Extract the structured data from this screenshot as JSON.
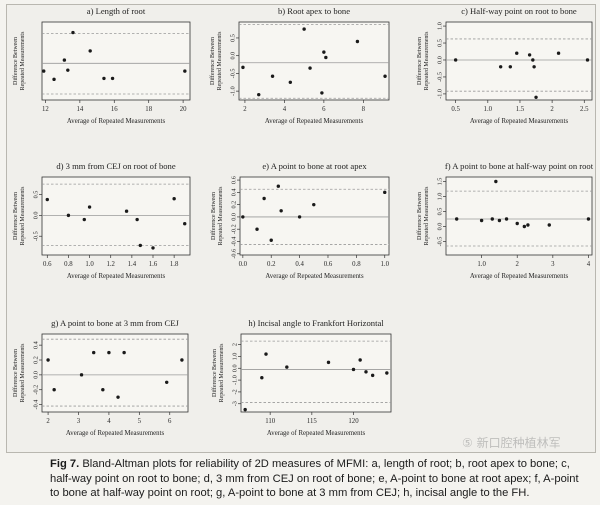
{
  "figure": {
    "caption_label": "Fig 7.",
    "caption_text": "Bland-Altman plots for reliability of 2D measures of MFMI: a, length of root; b, root apex to bone; c, half-way point on root to bone; d, 3 mm from CEJ on root of bone; e, A-point to bone at root apex; f, A-point to bone at half-way point on root; g, A-point to bone at 3 mm from CEJ; h, incisal angle to the FH.",
    "watermark": "⑤ 新口腔种植林军"
  },
  "colors": {
    "mean_line": "#9a9a9a",
    "limit_line": "#9a9a9a",
    "point": "#1a1a1a",
    "axis": "#333333"
  },
  "chart_data": [
    {
      "type": "scatter",
      "title": "a) Length of root",
      "xlabel": "Average of Repeated Measurements",
      "ylabel": "Difference Between Repeated Measurements",
      "xlim": [
        11.8,
        20.4
      ],
      "ylim": [
        -0.85,
        0.85
      ],
      "xticks": [
        12,
        14,
        16,
        18,
        20
      ],
      "yticks": [],
      "mean": -0.05,
      "limits": [
        -0.72,
        0.6
      ],
      "x": [
        11.9,
        12.5,
        13.1,
        13.3,
        13.6,
        14.6,
        15.4,
        15.9,
        20.1
      ],
      "y": [
        -0.22,
        -0.4,
        0.02,
        -0.2,
        0.62,
        0.22,
        -0.38,
        -0.38,
        -0.22
      ]
    },
    {
      "type": "scatter",
      "title": "b) Root apex to bone",
      "xlabel": "Average of Repeated Measurements",
      "ylabel": "Difference Between Repeated Measurements",
      "xlim": [
        1.7,
        9.3
      ],
      "ylim": [
        -1.25,
        0.95
      ],
      "xticks": [
        2,
        4,
        6,
        8
      ],
      "yticks": [
        0.5,
        0.0,
        -0.5,
        -1.0
      ],
      "mean": -0.2,
      "limits": [
        -1.2,
        0.88
      ],
      "x": [
        1.9,
        2.7,
        3.4,
        4.3,
        5.0,
        5.3,
        5.9,
        6.0,
        6.1,
        7.7,
        9.1
      ],
      "y": [
        -0.33,
        -1.1,
        -0.58,
        -0.75,
        0.75,
        -0.35,
        -1.05,
        0.1,
        -0.05,
        0.4,
        -0.58
      ]
    },
    {
      "type": "scatter",
      "title": "c) Half-way point on root to bone",
      "xlabel": "Average of Repeated Measurements",
      "ylabel": "Difference Between Repeated Measurements",
      "xlim": [
        0.35,
        2.62
      ],
      "ylim": [
        -1.18,
        1.12
      ],
      "xticks": [
        0.5,
        1.0,
        1.5,
        2.0,
        2.5
      ],
      "yticks": [
        1.0,
        0.5,
        0.0,
        -0.5,
        -1.0
      ],
      "mean": 0.0,
      "limits": [
        -0.92,
        0.62
      ],
      "x": [
        0.5,
        1.2,
        1.35,
        1.45,
        1.65,
        1.7,
        1.72,
        1.75,
        2.1,
        2.55
      ],
      "y": [
        0.0,
        -0.2,
        -0.2,
        0.2,
        0.15,
        0.0,
        -0.2,
        -1.1,
        0.2,
        0.0
      ]
    },
    {
      "type": "scatter",
      "title": "d) 3 mm from CEJ on root of bone",
      "xlabel": "Average of Repeated Measurements",
      "ylabel": "Difference Between Repeated Measurements",
      "xlim": [
        0.55,
        1.95
      ],
      "ylim": [
        -0.95,
        0.92
      ],
      "xticks": [
        0.6,
        0.8,
        1.0,
        1.2,
        1.4,
        1.6,
        1.8
      ],
      "yticks": [
        0.5,
        0.0,
        -0.5
      ],
      "mean": 0.0,
      "limits": [
        -0.72,
        0.75
      ],
      "x": [
        0.6,
        0.8,
        0.95,
        1.0,
        1.35,
        1.45,
        1.48,
        1.6,
        1.8,
        1.9
      ],
      "y": [
        0.38,
        0.0,
        -0.1,
        0.2,
        0.1,
        -0.1,
        -0.72,
        -0.78,
        0.4,
        -0.2
      ]
    },
    {
      "type": "scatter",
      "title": "e) A point to bone at root apex",
      "xlabel": "Average of Repeated Measurements",
      "ylabel": "Difference Between Repeated Measurements",
      "xlim": [
        -0.02,
        1.03
      ],
      "ylim": [
        -0.62,
        0.65
      ],
      "xticks": [
        0.0,
        0.2,
        0.4,
        0.6,
        0.8,
        1.0
      ],
      "yticks": [
        0.6,
        0.4,
        0.2,
        0.0,
        -0.2,
        -0.4,
        -0.6
      ],
      "mean": 0.0,
      "limits": [
        -0.45,
        0.45
      ],
      "x": [
        0.0,
        0.1,
        0.15,
        0.2,
        0.25,
        0.27,
        0.4,
        0.5,
        1.0
      ],
      "y": [
        0.0,
        -0.2,
        0.3,
        -0.38,
        0.5,
        0.1,
        0.0,
        0.2,
        0.4
      ]
    },
    {
      "type": "scatter",
      "title": "f) A point to bone at half-way point on root",
      "xlabel": "Average of Repeated Measurements",
      "ylabel": "Difference Between Repeated Measurements",
      "xlim": [
        0.0,
        4.1
      ],
      "ylim": [
        -0.95,
        1.65
      ],
      "xticks": [
        1,
        2,
        3,
        4
      ],
      "yticks": [
        1.5,
        1.0,
        0.5,
        0.0,
        -0.5
      ],
      "mean": 0.25,
      "limits": [
        -0.65,
        1.18
      ],
      "x": [
        0.3,
        1.0,
        1.3,
        1.4,
        1.5,
        1.7,
        2.0,
        2.2,
        2.3,
        2.9,
        4.0
      ],
      "y": [
        0.25,
        0.2,
        0.25,
        1.5,
        0.2,
        0.25,
        0.1,
        0.0,
        0.05,
        0.05,
        0.25
      ]
    },
    {
      "type": "scatter",
      "title": "g) A point to bone at 3 mm from CEJ",
      "xlabel": "Average of Repeated Measurements",
      "ylabel": "Difference Between Repeated Measurements",
      "xlim": [
        1.8,
        6.6
      ],
      "ylim": [
        -0.5,
        0.55
      ],
      "xticks": [
        2,
        3,
        4,
        5,
        6
      ],
      "yticks": [
        0.4,
        0.2,
        0.0,
        -0.2,
        -0.4
      ],
      "mean": 0.0,
      "limits": [
        -0.42,
        0.48
      ],
      "x": [
        2.0,
        2.2,
        3.1,
        3.5,
        3.8,
        4.0,
        4.3,
        4.5,
        5.9,
        6.4
      ],
      "y": [
        0.2,
        -0.2,
        0.0,
        0.3,
        -0.2,
        0.3,
        -0.3,
        0.3,
        -0.1,
        0.2
      ]
    },
    {
      "type": "scatter",
      "title": "h) Incisal angle to Frankfort Horizontal",
      "xlabel": "Average of Repeated Measurements",
      "ylabel": "Difference Between Repeated Measurements",
      "xlim": [
        106.5,
        124.5
      ],
      "ylim": [
        -3.7,
        2.9
      ],
      "xticks": [
        110,
        115,
        120
      ],
      "yticks": [
        2,
        1,
        0,
        -1,
        -2,
        -3
      ],
      "mean": -0.1,
      "limits": [
        -2.9,
        2.3
      ],
      "x": [
        107.0,
        109.0,
        109.5,
        112.0,
        117.0,
        120.0,
        120.8,
        121.5,
        122.3,
        124.0
      ],
      "y": [
        -3.5,
        -0.8,
        1.2,
        0.1,
        0.5,
        -0.1,
        0.7,
        -0.3,
        -0.6,
        -0.4
      ]
    }
  ]
}
